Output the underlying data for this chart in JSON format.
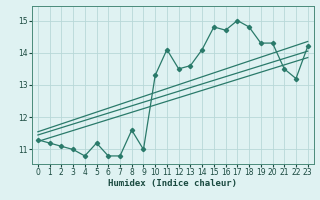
{
  "x": [
    0,
    1,
    2,
    3,
    4,
    5,
    6,
    7,
    8,
    9,
    10,
    11,
    12,
    13,
    14,
    15,
    16,
    17,
    18,
    19,
    20,
    21,
    22,
    23
  ],
  "y_data": [
    11.3,
    11.2,
    11.1,
    11.0,
    10.8,
    11.2,
    10.8,
    10.8,
    11.6,
    11.0,
    13.3,
    14.1,
    13.5,
    13.6,
    14.1,
    14.8,
    14.7,
    15.0,
    14.8,
    14.3,
    14.3,
    13.5,
    13.2,
    14.2
  ],
  "trend1_x": [
    0,
    23
  ],
  "trend1_y": [
    11.25,
    13.85
  ],
  "trend2_x": [
    0,
    23
  ],
  "trend2_y": [
    11.45,
    14.05
  ],
  "trend3_x": [
    0,
    23
  ],
  "trend3_y": [
    11.55,
    14.35
  ],
  "line_color": "#2a7a6a",
  "bg_color": "#dff2f2",
  "grid_color": "#b8d8d8",
  "xlabel": "Humidex (Indice chaleur)",
  "xlim": [
    -0.5,
    23.5
  ],
  "ylim": [
    10.55,
    15.45
  ],
  "yticks": [
    11,
    12,
    13,
    14,
    15
  ],
  "xticks": [
    0,
    1,
    2,
    3,
    4,
    5,
    6,
    7,
    8,
    9,
    10,
    11,
    12,
    13,
    14,
    15,
    16,
    17,
    18,
    19,
    20,
    21,
    22,
    23
  ]
}
